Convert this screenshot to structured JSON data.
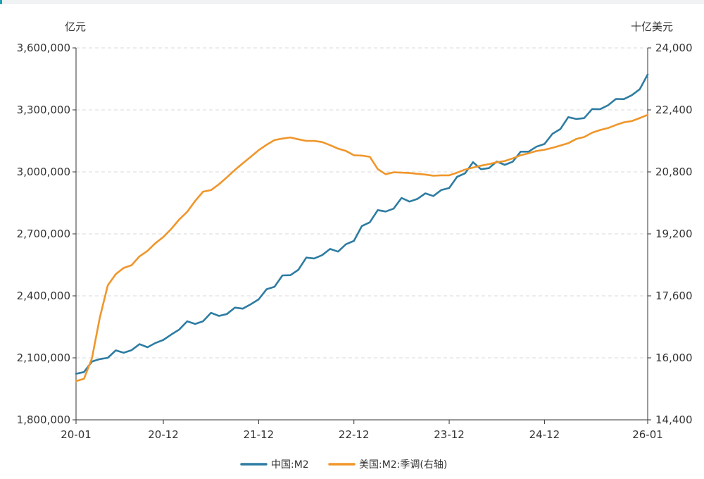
{
  "chart_data": {
    "type": "line",
    "left_unit": "亿元",
    "right_unit": "十亿美元",
    "left_axis": {
      "range": [
        1800000,
        3600000
      ],
      "ticks": [
        1800000,
        2100000,
        2400000,
        2700000,
        3000000,
        3300000,
        3600000
      ],
      "tick_labels": [
        "1,800,000",
        "2,100,000",
        "2,400,000",
        "2,700,000",
        "3,000,000",
        "3,300,000",
        "3,600,000"
      ]
    },
    "right_axis": {
      "range": [
        14400,
        24000
      ],
      "ticks": [
        14400,
        16000,
        17600,
        19200,
        20800,
        22400,
        24000
      ],
      "tick_labels": [
        "14,400",
        "16,000",
        "17,600",
        "19,200",
        "20,800",
        "22,400",
        "24,000"
      ]
    },
    "x_axis": {
      "start": "2020-01",
      "end": "2026-01",
      "tick_labels": [
        {
          "date": "2020-01",
          "label": "20-01"
        },
        {
          "date": "2020-12",
          "label": "20-12"
        },
        {
          "date": "2021-12",
          "label": "21-12"
        },
        {
          "date": "2022-12",
          "label": "22-12"
        },
        {
          "date": "2023-12",
          "label": "23-12"
        },
        {
          "date": "2024-12",
          "label": "24-12"
        },
        {
          "date": "2026-01",
          "label": "26-01"
        }
      ]
    },
    "grid": "horizontal-dashed",
    "legend_position": "bottom-center",
    "series": [
      {
        "name": "中国:M2",
        "axis": "left",
        "color": "#2e7ca2",
        "points": [
          [
            "2020-01",
            2023000
          ],
          [
            "2020-02",
            2031000
          ],
          [
            "2020-03",
            2082000
          ],
          [
            "2020-04",
            2094000
          ],
          [
            "2020-05",
            2100000
          ],
          [
            "2020-06",
            2136000
          ],
          [
            "2020-07",
            2125000
          ],
          [
            "2020-08",
            2137000
          ],
          [
            "2020-09",
            2166000
          ],
          [
            "2020-10",
            2151000
          ],
          [
            "2020-11",
            2172000
          ],
          [
            "2020-12",
            2187000
          ],
          [
            "2021-01",
            2213000
          ],
          [
            "2021-02",
            2237000
          ],
          [
            "2021-03",
            2277000
          ],
          [
            "2021-04",
            2264000
          ],
          [
            "2021-05",
            2277000
          ],
          [
            "2021-06",
            2318000
          ],
          [
            "2021-07",
            2303000
          ],
          [
            "2021-08",
            2312000
          ],
          [
            "2021-09",
            2343000
          ],
          [
            "2021-10",
            2338000
          ],
          [
            "2021-11",
            2359000
          ],
          [
            "2021-12",
            2383000
          ],
          [
            "2022-01",
            2432000
          ],
          [
            "2022-02",
            2444000
          ],
          [
            "2022-03",
            2499000
          ],
          [
            "2022-04",
            2500000
          ],
          [
            "2022-05",
            2526000
          ],
          [
            "2022-06",
            2585000
          ],
          [
            "2022-07",
            2581000
          ],
          [
            "2022-08",
            2597000
          ],
          [
            "2022-09",
            2627000
          ],
          [
            "2022-10",
            2614000
          ],
          [
            "2022-11",
            2650000
          ],
          [
            "2022-12",
            2666000
          ],
          [
            "2023-01",
            2738000
          ],
          [
            "2023-02",
            2756000
          ],
          [
            "2023-03",
            2815000
          ],
          [
            "2023-04",
            2808000
          ],
          [
            "2023-05",
            2822000
          ],
          [
            "2023-06",
            2874000
          ],
          [
            "2023-07",
            2856000
          ],
          [
            "2023-08",
            2869000
          ],
          [
            "2023-09",
            2896000
          ],
          [
            "2023-10",
            2883000
          ],
          [
            "2023-11",
            2912000
          ],
          [
            "2023-12",
            2922000
          ],
          [
            "2024-01",
            2976000
          ],
          [
            "2024-02",
            2993000
          ],
          [
            "2024-03",
            3047000
          ],
          [
            "2024-04",
            3013000
          ],
          [
            "2024-05",
            3018000
          ],
          [
            "2024-06",
            3050000
          ],
          [
            "2024-07",
            3034000
          ],
          [
            "2024-08",
            3049000
          ],
          [
            "2024-09",
            3098000
          ],
          [
            "2024-10",
            3098000
          ],
          [
            "2024-11",
            3122000
          ],
          [
            "2024-12",
            3135000
          ],
          [
            "2025-01",
            3184000
          ],
          [
            "2025-02",
            3207000
          ],
          [
            "2025-03",
            3265000
          ],
          [
            "2025-04",
            3256000
          ],
          [
            "2025-05",
            3260000
          ],
          [
            "2025-06",
            3304000
          ],
          [
            "2025-07",
            3303000
          ],
          [
            "2025-08",
            3322000
          ],
          [
            "2025-09",
            3353000
          ],
          [
            "2025-10",
            3352000
          ],
          [
            "2025-11",
            3371000
          ],
          [
            "2025-12",
            3400000
          ],
          [
            "2026-01",
            3471000
          ]
        ]
      },
      {
        "name": "美国:M2:季调(右轴)",
        "axis": "right",
        "color": "#f0962a",
        "points": [
          [
            "2020-01",
            15400
          ],
          [
            "2020-02",
            15460
          ],
          [
            "2020-03",
            15990
          ],
          [
            "2020-04",
            17040
          ],
          [
            "2020-05",
            17870
          ],
          [
            "2020-06",
            18160
          ],
          [
            "2020-07",
            18320
          ],
          [
            "2020-08",
            18390
          ],
          [
            "2020-09",
            18620
          ],
          [
            "2020-10",
            18760
          ],
          [
            "2020-11",
            18960
          ],
          [
            "2020-12",
            19120
          ],
          [
            "2021-01",
            19330
          ],
          [
            "2021-02",
            19570
          ],
          [
            "2021-03",
            19770
          ],
          [
            "2021-04",
            20050
          ],
          [
            "2021-05",
            20290
          ],
          [
            "2021-06",
            20330
          ],
          [
            "2021-07",
            20480
          ],
          [
            "2021-08",
            20660
          ],
          [
            "2021-09",
            20850
          ],
          [
            "2021-10",
            21020
          ],
          [
            "2021-11",
            21190
          ],
          [
            "2021-12",
            21360
          ],
          [
            "2022-01",
            21500
          ],
          [
            "2022-02",
            21620
          ],
          [
            "2022-03",
            21660
          ],
          [
            "2022-04",
            21690
          ],
          [
            "2022-05",
            21640
          ],
          [
            "2022-06",
            21600
          ],
          [
            "2022-07",
            21600
          ],
          [
            "2022-08",
            21570
          ],
          [
            "2022-09",
            21490
          ],
          [
            "2022-10",
            21400
          ],
          [
            "2022-11",
            21340
          ],
          [
            "2022-12",
            21230
          ],
          [
            "2023-01",
            21220
          ],
          [
            "2023-02",
            21190
          ],
          [
            "2023-03",
            20870
          ],
          [
            "2023-04",
            20740
          ],
          [
            "2023-05",
            20790
          ],
          [
            "2023-06",
            20780
          ],
          [
            "2023-07",
            20770
          ],
          [
            "2023-08",
            20750
          ],
          [
            "2023-09",
            20730
          ],
          [
            "2023-10",
            20700
          ],
          [
            "2023-11",
            20710
          ],
          [
            "2023-12",
            20710
          ],
          [
            "2024-01",
            20780
          ],
          [
            "2024-02",
            20860
          ],
          [
            "2024-03",
            20910
          ],
          [
            "2024-04",
            20960
          ],
          [
            "2024-05",
            21000
          ],
          [
            "2024-06",
            21050
          ],
          [
            "2024-07",
            21080
          ],
          [
            "2024-08",
            21150
          ],
          [
            "2024-09",
            21230
          ],
          [
            "2024-10",
            21280
          ],
          [
            "2024-11",
            21340
          ],
          [
            "2024-12",
            21370
          ],
          [
            "2025-01",
            21420
          ],
          [
            "2025-02",
            21480
          ],
          [
            "2025-03",
            21540
          ],
          [
            "2025-04",
            21650
          ],
          [
            "2025-05",
            21700
          ],
          [
            "2025-06",
            21810
          ],
          [
            "2025-07",
            21880
          ],
          [
            "2025-08",
            21930
          ],
          [
            "2025-09",
            22010
          ],
          [
            "2025-10",
            22080
          ],
          [
            "2025-11",
            22110
          ],
          [
            "2025-12",
            22190
          ],
          [
            "2026-01",
            22270
          ]
        ]
      }
    ]
  }
}
